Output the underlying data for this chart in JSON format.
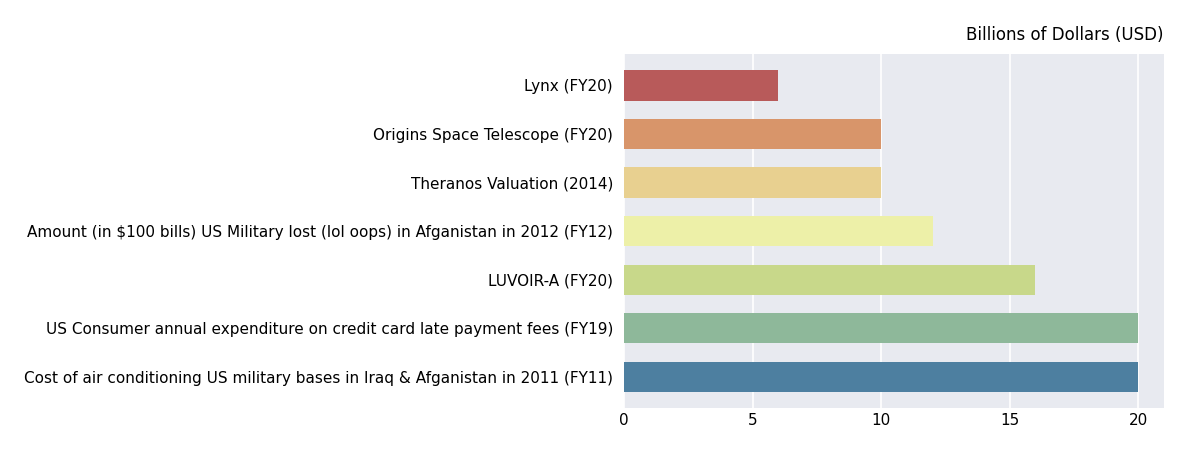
{
  "categories": [
    "Cost of air conditioning US military bases in Iraq & Afganistan in 2011 (FY11)",
    "US Consumer annual expenditure on credit card late payment fees (FY19)",
    "LUVOIR-A (FY20)",
    "Amount (in $100 bills) US Military lost (lol oops) in Afganistan in 2012 (FY12)",
    "Theranos Valuation (2014)",
    "Origins Space Telescope (FY20)",
    "Lynx (FY20)"
  ],
  "values": [
    20,
    20,
    16,
    12,
    10,
    10,
    6
  ],
  "colors": [
    "#4d7fa0",
    "#8eb89a",
    "#c8d88a",
    "#edf0a8",
    "#e8d090",
    "#d8956a",
    "#b85a5a"
  ],
  "top_label": "Billions of Dollars (USD)",
  "xlim": [
    0,
    21
  ],
  "xticks": [
    0,
    5,
    10,
    15,
    20
  ],
  "axes_bg_color": "#e8eaf0",
  "fig_bg_color": "#ffffff",
  "bar_height": 0.62,
  "figsize": [
    12.0,
    4.53
  ],
  "dpi": 100,
  "label_fontsize": 11,
  "tick_fontsize": 11,
  "title_fontsize": 12
}
